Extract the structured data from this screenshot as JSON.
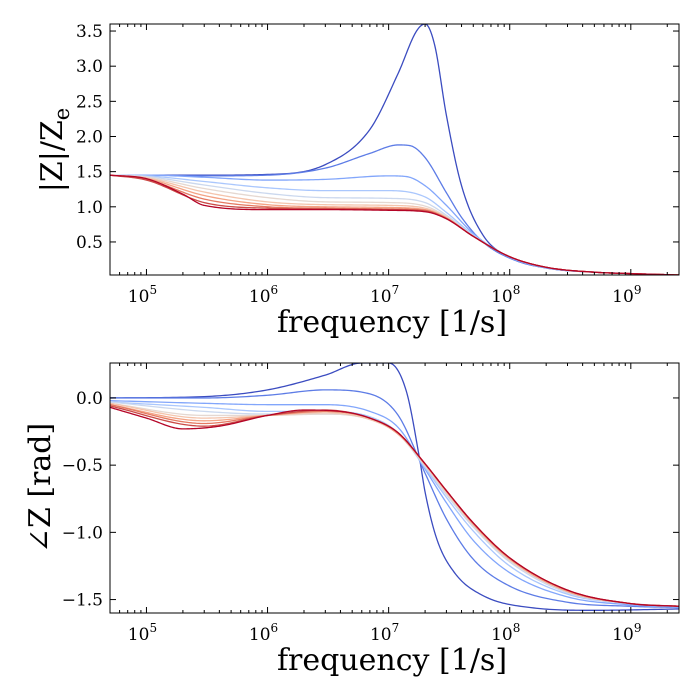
{
  "chart_data": [
    {
      "type": "line",
      "id": "magnitude",
      "xscale": "log",
      "xlim": [
        50000,
        2500000000
      ],
      "ylim": [
        0.03,
        3.6
      ],
      "xlabel": "frequency [1/s]",
      "ylabel_main": "|Z|/Z",
      "ylabel_sub": "e",
      "yticks": [
        0.5,
        1.0,
        1.5,
        2.0,
        2.5,
        3.0,
        3.5
      ],
      "ytick_labels": [
        "0.5",
        "1.0",
        "1.5",
        "2.0",
        "2.5",
        "3.0",
        "3.5"
      ],
      "xticks": [
        100000,
        1000000,
        10000000,
        100000000,
        1000000000
      ],
      "xtick_bases": [
        "10",
        "10",
        "10",
        "10",
        "10"
      ],
      "xtick_exps": [
        "5",
        "6",
        "7",
        "8",
        "9"
      ],
      "series": [
        {
          "name": "s1",
          "color": "#3b4cc0",
          "x": [
            50000,
            100000,
            300000,
            1000000,
            3000000,
            7000000,
            12000000,
            17000000,
            20000000,
            24000000,
            30000000,
            40000000,
            60000000,
            100000000,
            200000000,
            500000000,
            1000000000,
            2500000000
          ],
          "values": [
            1.45,
            1.45,
            1.45,
            1.46,
            1.6,
            2.1,
            2.9,
            3.5,
            3.6,
            3.3,
            2.3,
            1.3,
            0.6,
            0.28,
            0.13,
            0.07,
            0.05,
            0.03
          ]
        },
        {
          "name": "s2",
          "color": "#5d7ce6",
          "x": [
            50000,
            100000,
            300000,
            1000000,
            3000000,
            7000000,
            12000000,
            15000000,
            20000000,
            30000000,
            40000000,
            60000000,
            100000000,
            200000000,
            500000000,
            1000000000,
            2500000000
          ],
          "values": [
            1.45,
            1.45,
            1.44,
            1.45,
            1.55,
            1.76,
            1.88,
            1.87,
            1.7,
            1.2,
            0.85,
            0.5,
            0.27,
            0.13,
            0.07,
            0.05,
            0.03
          ]
        },
        {
          "name": "s3",
          "color": "#82a6fb",
          "x": [
            50000,
            100000,
            300000,
            1000000,
            3000000,
            10000000,
            14000000,
            20000000,
            30000000,
            50000000,
            100000000,
            200000000,
            500000000,
            1000000000,
            2500000000
          ],
          "values": [
            1.45,
            1.45,
            1.42,
            1.38,
            1.39,
            1.44,
            1.43,
            1.3,
            1.02,
            0.62,
            0.28,
            0.13,
            0.07,
            0.05,
            0.03
          ]
        },
        {
          "name": "s4",
          "color": "#aac7fd",
          "x": [
            50000,
            100000,
            300000,
            1000000,
            3000000,
            10000000,
            20000000,
            30000000,
            50000000,
            100000000,
            200000000,
            500000000,
            1000000000,
            2500000000
          ],
          "values": [
            1.45,
            1.44,
            1.36,
            1.27,
            1.23,
            1.23,
            1.14,
            0.92,
            0.6,
            0.29,
            0.14,
            0.07,
            0.05,
            0.03
          ]
        },
        {
          "name": "s5",
          "color": "#cbd8ee",
          "x": [
            50000,
            100000,
            300000,
            1000000,
            3000000,
            10000000,
            20000000,
            30000000,
            50000000,
            100000000,
            200000000,
            500000000,
            1000000000,
            2500000000
          ],
          "values": [
            1.45,
            1.43,
            1.31,
            1.19,
            1.13,
            1.12,
            1.06,
            0.88,
            0.59,
            0.29,
            0.14,
            0.07,
            0.05,
            0.03
          ]
        },
        {
          "name": "s6",
          "color": "#e5d8d1",
          "x": [
            50000,
            100000,
            300000,
            1000000,
            3000000,
            10000000,
            20000000,
            30000000,
            50000000,
            100000000,
            200000000,
            500000000,
            1000000000,
            2500000000
          ],
          "values": [
            1.45,
            1.42,
            1.26,
            1.13,
            1.07,
            1.06,
            1.01,
            0.86,
            0.58,
            0.29,
            0.14,
            0.07,
            0.05,
            0.03
          ]
        },
        {
          "name": "s7",
          "color": "#f4c4ac",
          "x": [
            50000,
            100000,
            300000,
            1000000,
            3000000,
            10000000,
            20000000,
            30000000,
            50000000,
            100000000,
            200000000,
            500000000,
            1000000000,
            2500000000
          ],
          "values": [
            1.45,
            1.41,
            1.21,
            1.07,
            1.03,
            1.02,
            0.98,
            0.85,
            0.58,
            0.29,
            0.14,
            0.07,
            0.05,
            0.03
          ]
        },
        {
          "name": "s8",
          "color": "#f4a385",
          "x": [
            50000,
            100000,
            300000,
            1000000,
            3000000,
            10000000,
            20000000,
            30000000,
            50000000,
            100000000,
            200000000,
            500000000,
            1000000000,
            2500000000
          ],
          "values": [
            1.45,
            1.4,
            1.16,
            1.03,
            1.0,
            0.99,
            0.96,
            0.84,
            0.58,
            0.29,
            0.14,
            0.07,
            0.05,
            0.03
          ]
        },
        {
          "name": "s9",
          "color": "#e57a62",
          "x": [
            50000,
            100000,
            300000,
            1000000,
            3000000,
            10000000,
            20000000,
            30000000,
            50000000,
            100000000,
            200000000,
            500000000,
            1000000000,
            2500000000
          ],
          "values": [
            1.45,
            1.39,
            1.11,
            1.0,
            0.98,
            0.97,
            0.95,
            0.84,
            0.58,
            0.29,
            0.14,
            0.07,
            0.05,
            0.03
          ]
        },
        {
          "name": "s10",
          "color": "#ca4a46",
          "x": [
            50000,
            100000,
            300000,
            1000000,
            3000000,
            10000000,
            20000000,
            30000000,
            50000000,
            100000000,
            200000000,
            500000000,
            1000000000,
            2500000000
          ],
          "values": [
            1.45,
            1.38,
            1.06,
            0.98,
            0.97,
            0.96,
            0.94,
            0.83,
            0.58,
            0.29,
            0.14,
            0.07,
            0.05,
            0.03
          ]
        },
        {
          "name": "s11",
          "color": "#b40426",
          "x": [
            50000,
            100000,
            200000,
            300000,
            1000000,
            3000000,
            10000000,
            20000000,
            30000000,
            50000000,
            100000000,
            200000000,
            500000000,
            1000000000,
            2500000000
          ],
          "values": [
            1.45,
            1.4,
            1.18,
            1.02,
            0.96,
            0.96,
            0.95,
            0.93,
            0.83,
            0.58,
            0.29,
            0.14,
            0.07,
            0.05,
            0.03
          ]
        }
      ]
    },
    {
      "type": "line",
      "id": "phase",
      "xscale": "log",
      "xlim": [
        50000,
        2500000000
      ],
      "ylim": [
        -1.6,
        0.26
      ],
      "xlabel": "frequency [1/s]",
      "ylabel_main": "∠Z [rad]",
      "yticks": [
        0.0,
        -0.5,
        -1.0,
        -1.5
      ],
      "ytick_labels": [
        "0.0",
        "−0.5",
        "−1.0",
        "−1.5"
      ],
      "xticks": [
        100000,
        1000000,
        10000000,
        100000000,
        1000000000
      ],
      "xtick_bases": [
        "10",
        "10",
        "10",
        "10",
        "10"
      ],
      "xtick_exps": [
        "5",
        "6",
        "7",
        "8",
        "9"
      ],
      "series": [
        {
          "name": "s1",
          "color": "#3b4cc0",
          "x": [
            50000,
            300000,
            1000000,
            3000000,
            6000000,
            10000000,
            14000000,
            18000000,
            20000000,
            25000000,
            35000000,
            60000000,
            150000000,
            500000000,
            2500000000
          ],
          "values": [
            0.0,
            0.01,
            0.06,
            0.17,
            0.26,
            0.26,
            0.05,
            -0.45,
            -0.7,
            -1.05,
            -1.3,
            -1.47,
            -1.56,
            -1.58,
            -1.57
          ]
        },
        {
          "name": "s2",
          "color": "#5d7ce6",
          "x": [
            50000,
            300000,
            1000000,
            3000000,
            7000000,
            12000000,
            20000000,
            30000000,
            50000000,
            100000000,
            300000000,
            1000000000,
            2500000000
          ],
          "values": [
            0.0,
            0.0,
            0.02,
            0.06,
            0.03,
            -0.13,
            -0.56,
            -0.9,
            -1.2,
            -1.4,
            -1.52,
            -1.55,
            -1.56
          ]
        },
        {
          "name": "s3",
          "color": "#82a6fb",
          "x": [
            50000,
            300000,
            1000000,
            3000000,
            7000000,
            12000000,
            20000000,
            30000000,
            50000000,
            100000000,
            300000000,
            1000000000,
            2500000000
          ],
          "values": [
            -0.02,
            -0.04,
            -0.05,
            -0.05,
            -0.1,
            -0.22,
            -0.53,
            -0.78,
            -1.06,
            -1.3,
            -1.48,
            -1.54,
            -1.56
          ]
        },
        {
          "name": "s4",
          "color": "#aac7fd",
          "x": [
            50000,
            300000,
            1000000,
            3000000,
            7000000,
            12000000,
            20000000,
            30000000,
            50000000,
            100000000,
            300000000,
            1000000000,
            2500000000
          ],
          "values": [
            -0.03,
            -0.07,
            -0.1,
            -0.1,
            -0.14,
            -0.26,
            -0.52,
            -0.74,
            -0.99,
            -1.25,
            -1.46,
            -1.53,
            -1.55
          ]
        },
        {
          "name": "s5",
          "color": "#cbd8ee",
          "x": [
            50000,
            300000,
            1000000,
            3000000,
            7000000,
            12000000,
            20000000,
            30000000,
            50000000,
            100000000,
            300000000,
            1000000000,
            2500000000
          ],
          "values": [
            -0.03,
            -0.1,
            -0.12,
            -0.12,
            -0.16,
            -0.27,
            -0.51,
            -0.72,
            -0.96,
            -1.22,
            -1.45,
            -1.53,
            -1.55
          ]
        },
        {
          "name": "s6",
          "color": "#e5d8d1",
          "x": [
            50000,
            300000,
            1000000,
            3000000,
            7000000,
            12000000,
            20000000,
            30000000,
            50000000,
            100000000,
            300000000,
            1000000000,
            2500000000
          ],
          "values": [
            -0.04,
            -0.13,
            -0.13,
            -0.12,
            -0.16,
            -0.27,
            -0.5,
            -0.71,
            -0.95,
            -1.21,
            -1.44,
            -1.53,
            -1.55
          ]
        },
        {
          "name": "s7",
          "color": "#f4c4ac",
          "x": [
            50000,
            300000,
            1000000,
            3000000,
            7000000,
            12000000,
            20000000,
            30000000,
            50000000,
            100000000,
            300000000,
            1000000000,
            2500000000
          ],
          "values": [
            -0.04,
            -0.15,
            -0.13,
            -0.11,
            -0.16,
            -0.27,
            -0.5,
            -0.7,
            -0.94,
            -1.2,
            -1.44,
            -1.53,
            -1.55
          ]
        },
        {
          "name": "s8",
          "color": "#f4a385",
          "x": [
            50000,
            300000,
            1000000,
            3000000,
            7000000,
            12000000,
            20000000,
            30000000,
            50000000,
            100000000,
            300000000,
            1000000000,
            2500000000
          ],
          "values": [
            -0.05,
            -0.17,
            -0.13,
            -0.1,
            -0.15,
            -0.27,
            -0.49,
            -0.69,
            -0.94,
            -1.2,
            -1.44,
            -1.53,
            -1.55
          ]
        },
        {
          "name": "s9",
          "color": "#e57a62",
          "x": [
            50000,
            300000,
            1000000,
            3000000,
            7000000,
            12000000,
            20000000,
            30000000,
            50000000,
            100000000,
            300000000,
            1000000000,
            2500000000
          ],
          "values": [
            -0.05,
            -0.19,
            -0.13,
            -0.1,
            -0.15,
            -0.26,
            -0.49,
            -0.69,
            -0.93,
            -1.19,
            -1.43,
            -1.53,
            -1.55
          ]
        },
        {
          "name": "s10",
          "color": "#ca4a46",
          "x": [
            50000,
            300000,
            1000000,
            3000000,
            7000000,
            12000000,
            20000000,
            30000000,
            50000000,
            100000000,
            300000000,
            1000000000,
            2500000000
          ],
          "values": [
            -0.06,
            -0.21,
            -0.13,
            -0.09,
            -0.15,
            -0.26,
            -0.49,
            -0.69,
            -0.93,
            -1.19,
            -1.43,
            -1.53,
            -1.55
          ]
        },
        {
          "name": "s11",
          "color": "#b40426",
          "x": [
            50000,
            100000,
            200000,
            400000,
            1000000,
            2000000,
            4000000,
            7000000,
            12000000,
            20000000,
            30000000,
            50000000,
            100000000,
            300000000,
            1000000000,
            2500000000
          ],
          "values": [
            -0.07,
            -0.15,
            -0.23,
            -0.21,
            -0.13,
            -0.09,
            -0.1,
            -0.15,
            -0.26,
            -0.49,
            -0.69,
            -0.93,
            -1.19,
            -1.43,
            -1.53,
            -1.55
          ]
        }
      ]
    }
  ]
}
